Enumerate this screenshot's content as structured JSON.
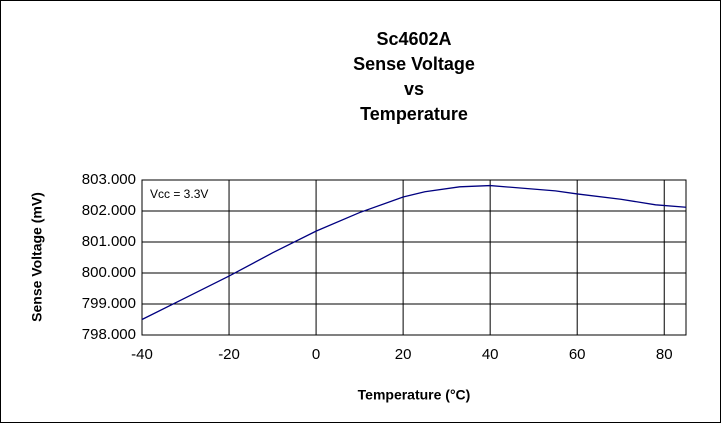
{
  "chart_data": {
    "type": "line",
    "title": [
      "Sc4602A",
      "Sense Voltage",
      "vs",
      "Temperature"
    ],
    "x_label": "Temperature (°C)",
    "y_label": "Sense Voltage (mV)",
    "annotation": "Vcc = 3.3V",
    "x": [
      -40,
      -30,
      -20,
      -10,
      0,
      10,
      20,
      25,
      33,
      40,
      55,
      60,
      70,
      78,
      85
    ],
    "series": [
      {
        "color": "#000080",
        "values": [
          798.5,
          799.2,
          799.9,
          800.65,
          801.35,
          801.95,
          802.45,
          802.62,
          802.78,
          802.82,
          802.65,
          802.55,
          802.38,
          802.2,
          802.12
        ]
      }
    ],
    "xlim": [
      -40,
      85
    ],
    "xticks": [
      -40,
      -20,
      0,
      20,
      40,
      60,
      80
    ],
    "ylim": [
      798,
      803
    ],
    "yticks": [
      {
        "value": 798,
        "label": "798.000"
      },
      {
        "value": 799,
        "label": "799.000"
      },
      {
        "value": 800,
        "label": "800.000"
      },
      {
        "value": 801,
        "label": "801.000"
      },
      {
        "value": 802,
        "label": "802.000"
      },
      {
        "value": 803,
        "label": "803.000"
      }
    ],
    "grid": true
  }
}
